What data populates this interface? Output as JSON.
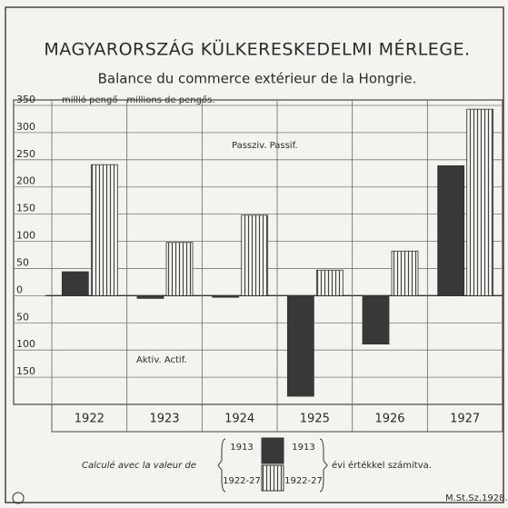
{
  "chart_data": {
    "type": "bar",
    "title": "MAGYARORSZÁG KÜLKERESKEDELMI MÉRLEGE.",
    "subtitle": "Balance du commerce extérieur de la Hongrie.",
    "y_label": "millió pengő - millions de pengős.",
    "annotations": [
      "Passziv. Passif.",
      "Aktiv. Actif."
    ],
    "categories": [
      "1922",
      "1923",
      "1924",
      "1925",
      "1926",
      "1927"
    ],
    "series": [
      {
        "name": "1913",
        "color": "#383838",
        "hatch": false,
        "values": [
          44,
          -5,
          -3,
          -185,
          -89,
          239
        ]
      },
      {
        "name": "1922-27",
        "color": "#555555",
        "hatch": true,
        "values": [
          241,
          98,
          148,
          47,
          82,
          343
        ]
      }
    ],
    "legend_text": [
      "Calculé avec la valeur de",
      "évi értékkel számitva."
    ],
    "footer": "M.St.Sz.1928.",
    "ylim": [
      -200,
      360
    ],
    "yticks": [
      350,
      300,
      250,
      200,
      150,
      100,
      50,
      0,
      {
        "value": -50,
        "label": "50"
      },
      {
        "value": -100,
        "label": "100"
      },
      {
        "value": -150,
        "label": "150"
      }
    ],
    "grid": true
  }
}
